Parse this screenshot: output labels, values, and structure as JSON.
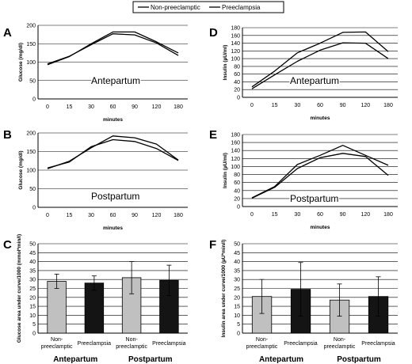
{
  "legend": {
    "items": [
      {
        "label": "Non-preeclamptic",
        "style": "solid"
      },
      {
        "label": "Preeclampsia",
        "style": "solid"
      }
    ]
  },
  "chart_data": [
    {
      "panel": "A",
      "type": "line",
      "annotation": "Antepartum",
      "xlabel": "minutes",
      "ylabel": "Glucose (mg/dl)",
      "categories": [
        "0",
        "15",
        "30",
        "60",
        "90",
        "120",
        "180"
      ],
      "ylim": [
        0,
        200
      ],
      "yticks": [
        0,
        50,
        100,
        150,
        200
      ],
      "grid": true,
      "series": [
        {
          "name": "Non-preeclamptic",
          "values": [
            93,
            115,
            150,
            182,
            182,
            155,
            125
          ]
        },
        {
          "name": "Preeclampsia",
          "values": [
            95,
            116,
            147,
            177,
            174,
            152,
            118
          ]
        }
      ]
    },
    {
      "panel": "B",
      "type": "line",
      "annotation": "Postpartum",
      "xlabel": "minutes",
      "ylabel": "Glucose (mg/dl)",
      "categories": [
        "0",
        "15",
        "30",
        "60",
        "90",
        "120",
        "180"
      ],
      "ylim": [
        0,
        200
      ],
      "yticks": [
        0,
        50,
        100,
        150,
        200
      ],
      "grid": true,
      "series": [
        {
          "name": "Non-preeclamptic",
          "values": [
            104,
            124,
            160,
            192,
            187,
            170,
            127
          ]
        },
        {
          "name": "Preeclampsia",
          "values": [
            106,
            122,
            163,
            182,
            177,
            158,
            126
          ]
        }
      ]
    },
    {
      "panel": "C",
      "type": "bar",
      "ylabel": "Glucose area under curve/1000 (mmol*min/l)",
      "categories": [
        "Non-preeclamptic",
        "Preeclampsia",
        "Non-preeclamptic",
        "Preeclampsia"
      ],
      "groups": [
        "Antepartum",
        "Postpartum"
      ],
      "values": [
        29,
        28,
        31,
        29.5
      ],
      "errors": [
        4,
        4,
        9,
        8.5
      ],
      "colors": [
        "#c0c0c0",
        "#141414",
        "#c0c0c0",
        "#141414"
      ],
      "ylim": [
        0,
        50
      ],
      "yticks": [
        0,
        5,
        10,
        15,
        20,
        25,
        30,
        35,
        40,
        45,
        50
      ],
      "grid": true
    },
    {
      "panel": "D",
      "type": "line",
      "annotation": "Antepartum",
      "xlabel": "minutes",
      "ylabel": "Insulin (µU/ml)",
      "categories": [
        "0",
        "15",
        "30",
        "60",
        "90",
        "120",
        "180"
      ],
      "ylim": [
        0,
        180
      ],
      "yticks": [
        0,
        20,
        40,
        60,
        80,
        100,
        120,
        140,
        160,
        180
      ],
      "grid": true,
      "series": [
        {
          "name": "Non-preeclamptic",
          "values": [
            27,
            68,
            115,
            140,
            168,
            169,
            118
          ]
        },
        {
          "name": "Preeclampsia",
          "values": [
            22,
            58,
            93,
            122,
            141,
            140,
            100
          ]
        }
      ]
    },
    {
      "panel": "E",
      "type": "line",
      "annotation": "Postpartum",
      "xlabel": "minutes",
      "ylabel": "Insulin (µU/ml)",
      "categories": [
        "0",
        "15",
        "30",
        "60",
        "90",
        "120",
        "180"
      ],
      "ylim": [
        0,
        180
      ],
      "yticks": [
        0,
        20,
        40,
        60,
        80,
        100,
        120,
        140,
        160,
        180
      ],
      "grid": true,
      "series": [
        {
          "name": "Non-preeclamptic",
          "values": [
            22,
            50,
            105,
            128,
            153,
            128,
            103
          ]
        },
        {
          "name": "Preeclampsia",
          "values": [
            21,
            48,
            95,
            122,
            133,
            125,
            78
          ]
        }
      ]
    },
    {
      "panel": "F",
      "type": "bar",
      "ylabel": "Insulin area under curve/1000 (µU*min/l)",
      "categories": [
        "Non-preeclamptic",
        "Preeclampsia",
        "Non-preeclamptic",
        "Preeclampsia"
      ],
      "groups": [
        "Antepartum",
        "Postpartum"
      ],
      "values": [
        20.5,
        24.5,
        18.5,
        20.5
      ],
      "errors": [
        9.5,
        15,
        9,
        11
      ],
      "colors": [
        "#c0c0c0",
        "#141414",
        "#c0c0c0",
        "#141414"
      ],
      "ylim": [
        0,
        50
      ],
      "yticks": [
        0,
        5,
        10,
        15,
        20,
        25,
        30,
        35,
        40,
        45,
        50
      ],
      "grid": true
    }
  ]
}
